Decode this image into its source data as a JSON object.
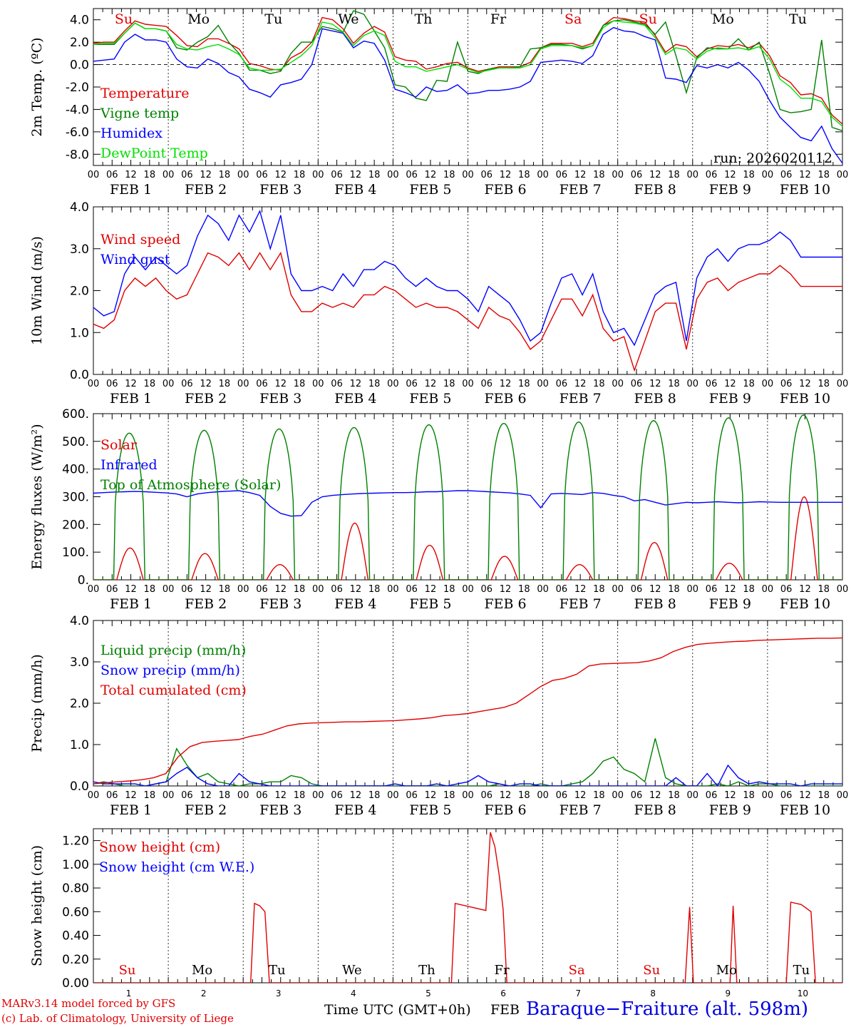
{
  "chart_data": [
    {
      "type": "line",
      "ylabel": "2m Temp. (ºC)",
      "ylim": [
        -9,
        5
      ],
      "yticks": [
        "4.0",
        "2.0",
        "0.0",
        "-2.0",
        "-4.0",
        "-6.0",
        "-8.0"
      ],
      "ytick_values": [
        4,
        2,
        0,
        -2,
        -4,
        -6,
        -8
      ],
      "day_names": [
        "Su",
        "Mo",
        "Tu",
        "We",
        "Th",
        "Fr",
        "Sa",
        "Su",
        "Mo",
        "Tu"
      ],
      "day_colors": [
        "#e00000",
        "#000000",
        "#000000",
        "#000000",
        "#000000",
        "#000000",
        "#e00000",
        "#e00000",
        "#000000",
        "#000000"
      ],
      "run_label": "run: 2026020112",
      "series": [
        {
          "name": "Temperature",
          "color": "#e00000",
          "values": [
            1.9,
            2.0,
            2.0,
            3.0,
            3.9,
            3.6,
            3.5,
            3.4,
            2.6,
            1.7,
            1.6,
            2.3,
            2.3,
            1.9,
            1.4,
            0.1,
            -0.1,
            -0.4,
            -0.5,
            0.6,
            1.1,
            2.0,
            4.2,
            4.0,
            3.2,
            1.9,
            2.8,
            3.4,
            2.9,
            0.7,
            0.4,
            0.3,
            -0.4,
            -0.2,
            0.1,
            0.2,
            -0.3,
            -0.6,
            -0.4,
            -0.2,
            -0.2,
            -0.2,
            0.2,
            1.5,
            1.9,
            1.9,
            1.9,
            1.6,
            1.9,
            3.5,
            4.2,
            4.1,
            3.9,
            3.8,
            2.6,
            1.1,
            1.8,
            1.6,
            0.7,
            1.4,
            1.7,
            1.6,
            1.8,
            1.5,
            1.9,
            0.8,
            -1.0,
            -1.6,
            -2.7,
            -2.6,
            -3.0,
            -4.5,
            -5.3
          ]
        },
        {
          "name": "Vigne temp",
          "color": "#008000",
          "values": [
            1.8,
            1.8,
            1.8,
            2.8,
            3.7,
            3.2,
            3.2,
            3.0,
            1.5,
            1.3,
            2.0,
            2.5,
            3.5,
            2.0,
            1.0,
            -0.5,
            -0.5,
            -0.8,
            -0.6,
            1.0,
            2.0,
            2.0,
            3.4,
            3.2,
            2.9,
            4.8,
            4.5,
            3.0,
            1.5,
            -1.8,
            -2.0,
            -3.0,
            -3.2,
            -1.4,
            -1.5,
            2.0,
            -0.6,
            -0.8,
            -0.4,
            -0.3,
            -0.3,
            -0.2,
            1.4,
            1.5,
            1.8,
            1.8,
            1.7,
            1.4,
            1.7,
            3.5,
            3.9,
            4.0,
            3.8,
            3.6,
            2.7,
            3.8,
            0.8,
            -2.5,
            0.6,
            1.5,
            1.4,
            1.4,
            2.3,
            1.3,
            2.0,
            -0.8,
            -4.0,
            -4.3,
            -4.2,
            -4.0,
            2.2,
            -5.6,
            -5.9
          ]
        },
        {
          "name": "Humidex",
          "color": "#0000ff",
          "values": [
            0.3,
            0.4,
            0.5,
            2.0,
            2.7,
            2.2,
            2.2,
            2.0,
            0.5,
            -0.2,
            -0.3,
            0.5,
            0.1,
            -0.7,
            -1.1,
            -2.2,
            -2.5,
            -2.9,
            -1.8,
            -1.6,
            -1.3,
            0.0,
            3.2,
            3.0,
            2.8,
            1.5,
            2.1,
            1.9,
            0.4,
            -2.2,
            -2.5,
            -2.9,
            -2.0,
            -2.4,
            -2.3,
            -1.8,
            -2.6,
            -2.5,
            -2.3,
            -2.3,
            -2.2,
            -2.0,
            -1.5,
            0.2,
            0.3,
            0.4,
            0.3,
            0.1,
            0.8,
            2.7,
            3.3,
            3.0,
            2.9,
            2.5,
            2.2,
            -1.2,
            -1.3,
            -1.6,
            -0.1,
            -0.3,
            0.0,
            -0.3,
            0.2,
            -0.5,
            -1.5,
            -3.2,
            -4.7,
            -5.6,
            -6.5,
            -6.8,
            -5.5,
            -7.5,
            -8.8
          ]
        },
        {
          "name": "DewPoint Temp",
          "color": "#00e000",
          "values": [
            1.8,
            1.9,
            1.9,
            2.8,
            3.7,
            3.2,
            3.2,
            3.0,
            1.8,
            1.4,
            1.3,
            1.6,
            1.8,
            1.4,
            0.9,
            -0.3,
            -0.5,
            -0.5,
            -0.4,
            0.2,
            0.8,
            1.7,
            3.8,
            3.6,
            2.9,
            1.7,
            2.6,
            3.0,
            2.6,
            0.3,
            -0.2,
            -0.2,
            -0.6,
            -0.4,
            -0.2,
            0.0,
            -0.4,
            -0.7,
            -0.5,
            -0.3,
            -0.3,
            -0.3,
            0.0,
            1.4,
            1.7,
            1.7,
            1.7,
            1.5,
            1.7,
            3.3,
            3.9,
            3.8,
            3.7,
            3.5,
            2.4,
            0.9,
            1.5,
            1.3,
            0.5,
            1.2,
            1.5,
            1.4,
            1.5,
            1.3,
            1.6,
            0.5,
            -1.3,
            -2.0,
            -3.0,
            -3.0,
            -3.3,
            -4.7,
            -5.5
          ]
        }
      ]
    },
    {
      "type": "line",
      "ylabel": "10m Wind (m/s)",
      "ylim": [
        0,
        4
      ],
      "yticks": [
        "4.0",
        "3.0",
        "2.0",
        "1.0",
        "0.0"
      ],
      "ytick_values": [
        4,
        3,
        2,
        1,
        0
      ],
      "series": [
        {
          "name": "Wind speed",
          "color": "#e00000",
          "values": [
            1.2,
            1.1,
            1.3,
            2.0,
            2.3,
            2.1,
            2.3,
            2.0,
            1.8,
            1.9,
            2.4,
            2.9,
            2.8,
            2.6,
            2.9,
            2.5,
            2.9,
            2.5,
            2.9,
            1.9,
            1.5,
            1.5,
            1.7,
            1.6,
            1.7,
            1.6,
            1.9,
            1.9,
            2.1,
            2.0,
            1.8,
            1.6,
            1.7,
            1.6,
            1.6,
            1.5,
            1.3,
            1.1,
            1.6,
            1.4,
            1.3,
            1.0,
            0.6,
            0.8,
            1.3,
            1.8,
            1.8,
            1.4,
            1.9,
            1.1,
            0.8,
            0.9,
            0.1,
            0.8,
            1.5,
            1.7,
            1.7,
            0.6,
            1.8,
            2.2,
            2.3,
            2.0,
            2.2,
            2.3,
            2.4,
            2.4,
            2.6,
            2.4,
            2.1,
            2.1,
            2.1,
            2.1,
            2.1
          ]
        },
        {
          "name": "Wind gust",
          "color": "#0000ff",
          "values": [
            1.6,
            1.4,
            1.5,
            2.4,
            2.8,
            2.5,
            2.8,
            2.6,
            2.4,
            2.6,
            3.3,
            3.8,
            3.6,
            3.2,
            3.8,
            3.4,
            3.9,
            3.0,
            3.8,
            2.4,
            2.0,
            2.0,
            2.1,
            2.0,
            2.4,
            2.1,
            2.5,
            2.5,
            2.7,
            2.6,
            2.3,
            2.1,
            2.3,
            2.1,
            2.0,
            2.0,
            1.8,
            1.5,
            2.1,
            1.9,
            1.7,
            1.3,
            0.8,
            1.0,
            1.7,
            2.3,
            2.4,
            1.9,
            2.4,
            1.5,
            1.0,
            1.1,
            0.7,
            1.3,
            1.9,
            2.1,
            2.2,
            0.8,
            2.3,
            2.8,
            3.0,
            2.7,
            3.0,
            3.1,
            3.1,
            3.2,
            3.4,
            3.2,
            2.8,
            2.8,
            2.8,
            2.8,
            2.8
          ]
        }
      ]
    },
    {
      "type": "line",
      "ylabel": "Energy fluxes (W/m²)",
      "ylim": [
        0,
        600
      ],
      "yticks": [
        "600.",
        "500.",
        "400.",
        "300.",
        "200.",
        "100.",
        "0."
      ],
      "ytick_values": [
        600,
        500,
        400,
        300,
        200,
        100,
        0
      ],
      "series": [
        {
          "name": "Solar",
          "color": "#e00000",
          "peaks": [
            115,
            95,
            55,
            205,
            125,
            85,
            55,
            135,
            60,
            300
          ]
        },
        {
          "name": "Infrared",
          "color": "#0000ff",
          "values": [
            313,
            315,
            317,
            318,
            319,
            318,
            316,
            314,
            310,
            300,
            310,
            315,
            318,
            320,
            322,
            315,
            305,
            265,
            240,
            230,
            232,
            280,
            300,
            305,
            308,
            310,
            312,
            313,
            314,
            315,
            315,
            316,
            318,
            318,
            320,
            322,
            322,
            320,
            318,
            316,
            314,
            310,
            305,
            260,
            310,
            312,
            310,
            308,
            315,
            312,
            305,
            300,
            285,
            290,
            280,
            270,
            275,
            280,
            278,
            280,
            282,
            280,
            278,
            280,
            282,
            281,
            280,
            280,
            280,
            280,
            280,
            280,
            280
          ]
        },
        {
          "name": "Top of Atmosphere (Solar)",
          "color": "#008000",
          "peaks": [
            530,
            540,
            545,
            550,
            560,
            565,
            570,
            575,
            585,
            595
          ]
        }
      ]
    },
    {
      "type": "line",
      "ylabel": "Precip (mm/h)",
      "ylim": [
        0,
        4
      ],
      "yticks": [
        "4.0",
        "3.0",
        "2.0",
        "1.0",
        "0.0"
      ],
      "ytick_values": [
        4,
        3,
        2,
        1,
        0
      ],
      "series": [
        {
          "name": "Liquid precip (mm/h)",
          "color": "#008000",
          "values": [
            0.05,
            0.1,
            0.05,
            0.0,
            0.0,
            0.0,
            0.05,
            0.1,
            0.9,
            0.5,
            0.2,
            0.3,
            0.1,
            0.05,
            0.0,
            0.05,
            0.05,
            0.1,
            0.1,
            0.25,
            0.2,
            0.05,
            0.0,
            0.0,
            0.0,
            0.0,
            0.0,
            0.0,
            0.0,
            0.0,
            0.0,
            0.0,
            0.0,
            0.0,
            0.0,
            0.0,
            0.0,
            0.0,
            0.0,
            0.05,
            0.0,
            0.0,
            0.0,
            0.05,
            0.0,
            0.0,
            0.05,
            0.1,
            0.3,
            0.6,
            0.7,
            0.4,
            0.3,
            0.1,
            1.15,
            0.2,
            0.05,
            0.0,
            0.0,
            0.0,
            0.05,
            0.0,
            0.1,
            0.0,
            0.05,
            0.05,
            0.0,
            0.0,
            0.0,
            0.0,
            0.0,
            0.0,
            0.0
          ]
        },
        {
          "name": "Snow precip (mm/h)",
          "color": "#0000ff",
          "values": [
            0.1,
            0.05,
            0.05,
            0.05,
            0.05,
            0.0,
            0.05,
            0.1,
            0.3,
            0.45,
            0.2,
            0.05,
            0.0,
            0.0,
            0.3,
            0.1,
            0.05,
            0.0,
            0.0,
            0.0,
            0.0,
            0.0,
            0.0,
            0.0,
            0.0,
            0.0,
            0.0,
            0.0,
            0.0,
            0.05,
            0.0,
            0.0,
            0.0,
            0.05,
            0.0,
            0.05,
            0.1,
            0.25,
            0.1,
            0.05,
            0.0,
            0.05,
            0.05,
            0.0,
            0.0,
            0.0,
            0.0,
            0.0,
            0.0,
            0.0,
            0.0,
            0.0,
            0.0,
            0.0,
            0.0,
            0.0,
            0.2,
            0.0,
            0.0,
            0.3,
            0.0,
            0.5,
            0.2,
            0.05,
            0.1,
            0.05,
            0.05,
            0.05,
            0.0,
            0.05,
            0.05,
            0.05,
            0.05
          ]
        },
        {
          "name": "Total cumulated (cm)",
          "color": "#e00000",
          "values": [
            0.05,
            0.08,
            0.1,
            0.12,
            0.15,
            0.2,
            0.3,
            0.7,
            0.95,
            1.05,
            1.08,
            1.1,
            1.12,
            1.2,
            1.25,
            1.35,
            1.45,
            1.5,
            1.52,
            1.53,
            1.54,
            1.55,
            1.55,
            1.56,
            1.57,
            1.58,
            1.6,
            1.62,
            1.65,
            1.7,
            1.72,
            1.75,
            1.8,
            1.85,
            1.9,
            2.0,
            2.2,
            2.4,
            2.55,
            2.6,
            2.7,
            2.9,
            2.95,
            2.96,
            2.97,
            2.98,
            3.02,
            3.1,
            3.25,
            3.35,
            3.42,
            3.45,
            3.47,
            3.49,
            3.5,
            3.52,
            3.53,
            3.54,
            3.55,
            3.56,
            3.57,
            3.57,
            3.58
          ]
        }
      ]
    },
    {
      "type": "line",
      "ylabel": "Snow height (cm)",
      "ylim": [
        0,
        1.3
      ],
      "yticks": [
        "1.20",
        "1.00",
        "0.80",
        "0.60",
        "0.40",
        "0.20",
        "0.00"
      ],
      "ytick_values": [
        1.2,
        1.0,
        0.8,
        0.6,
        0.4,
        0.2,
        0.0
      ],
      "bottom_day_names": [
        "Su",
        "Mo",
        "Tu",
        "We",
        "Th",
        "Fr",
        "Sa",
        "Su",
        "Mo",
        "Tu"
      ],
      "bottom_day_colors": [
        "#e00000",
        "#000000",
        "#000000",
        "#000000",
        "#000000",
        "#000000",
        "#e00000",
        "#e00000",
        "#000000",
        "#000000"
      ],
      "bottom_day_numbers": [
        "1",
        "2",
        "3",
        "4",
        "5",
        "6",
        "7",
        "8",
        "9",
        "10"
      ],
      "series": [
        {
          "name": "Snow height (cm)",
          "color": "#e00000",
          "points": [
            [
              0,
              0
            ],
            [
              21,
              0
            ],
            [
              21.5,
              0.67
            ],
            [
              22.2,
              0.65
            ],
            [
              22.9,
              0.6
            ],
            [
              23.5,
              0
            ],
            [
              47.8,
              0
            ],
            [
              48.3,
              0.67
            ],
            [
              52.4,
              0.61
            ],
            [
              53,
              1.27
            ],
            [
              53.6,
              1.15
            ],
            [
              54.2,
              0.9
            ],
            [
              54.7,
              0.62
            ],
            [
              55.2,
              0
            ],
            [
              79,
              0
            ],
            [
              79.6,
              0.64
            ],
            [
              80.1,
              0
            ],
            [
              85,
              0
            ],
            [
              85.4,
              0.65
            ],
            [
              85.9,
              0
            ],
            [
              92.5,
              0
            ],
            [
              93.1,
              0.68
            ],
            [
              94.5,
              0.66
            ],
            [
              95.8,
              0.6
            ],
            [
              96.4,
              0
            ],
            [
              100,
              0
            ]
          ]
        },
        {
          "name": "Snow height (cm W.E.)",
          "color": "#0000ff",
          "points": []
        }
      ]
    }
  ],
  "x_axis": {
    "hour_labels": [
      "00",
      "06",
      "12",
      "18"
    ],
    "final_label": "00",
    "date_labels": [
      "FEB  1",
      "FEB  2",
      "FEB  3",
      "FEB  4",
      "FEB  5",
      "FEB  6",
      "FEB  7",
      "FEB  8",
      "FEB  9",
      "FEB 10"
    ]
  },
  "footer": {
    "model": "MARv3.14 model forced by GFS",
    "credit": "(c) Lab. of Climatology, University of Liege",
    "time_label": "Time UTC (GMT+0h)",
    "feb_label": "FEB",
    "station": "Baraque−Fraiture (alt. 598m)"
  },
  "colors": {
    "red": "#e00000",
    "green": "#008000",
    "blue": "#0000ff",
    "lightgreen": "#00e000"
  }
}
